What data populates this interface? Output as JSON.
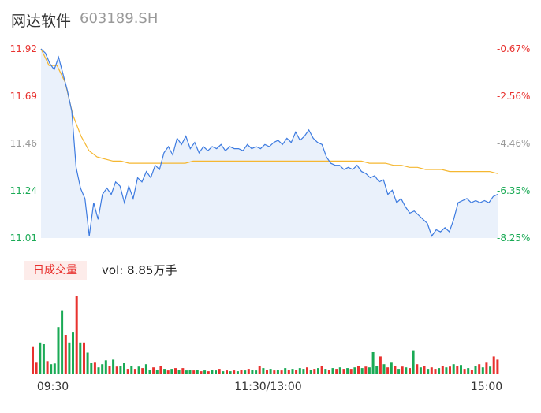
{
  "header": {
    "name": "网达软件",
    "code": "603189.SH"
  },
  "volume_panel": {
    "tag": "日成交量",
    "vol_text": "vol: 8.85万手"
  },
  "colors": {
    "up": "#e8322f",
    "down": "#1aaa55",
    "price_line": "#3d7be0",
    "avg_line": "#f5b731",
    "area_fill": "#eaf1fb"
  },
  "chart_data": [
    {
      "type": "line",
      "title": "",
      "y_ticks_left": [
        "11.92",
        "11.69",
        "11.46",
        "11.24",
        "11.01"
      ],
      "y_ticks_right": [
        "-0.67%",
        "-2.56%",
        "-4.46%",
        "-6.35%",
        "-8.25%"
      ],
      "ylim": [
        11.01,
        11.92
      ],
      "x_ticks": [
        "09:30",
        "11:30/13:00",
        "15:00"
      ],
      "grid": false,
      "series": [
        {
          "role": "price",
          "values": [
            11.92,
            11.9,
            11.85,
            11.82,
            11.88,
            11.8,
            11.72,
            11.62,
            11.35,
            11.25,
            11.2,
            11.02,
            11.18,
            11.1,
            11.22,
            11.25,
            11.22,
            11.28,
            11.26,
            11.18,
            11.26,
            11.2,
            11.3,
            11.28,
            11.33,
            11.3,
            11.36,
            11.34,
            11.42,
            11.45,
            11.41,
            11.49,
            11.46,
            11.5,
            11.44,
            11.47,
            11.42,
            11.45,
            11.43,
            11.45,
            11.44,
            11.46,
            11.43,
            11.45,
            11.44,
            11.44,
            11.43,
            11.46,
            11.44,
            11.45,
            11.44,
            11.46,
            11.45,
            11.47,
            11.48,
            11.46,
            11.49,
            11.47,
            11.52,
            11.48,
            11.5,
            11.53,
            11.49,
            11.47,
            11.46,
            11.4,
            11.37,
            11.36,
            11.36,
            11.34,
            11.35,
            11.34,
            11.36,
            11.33,
            11.32,
            11.3,
            11.31,
            11.28,
            11.29,
            11.22,
            11.24,
            11.18,
            11.2,
            11.16,
            11.13,
            11.14,
            11.12,
            11.1,
            11.08,
            11.02,
            11.05,
            11.04,
            11.06,
            11.04,
            11.1,
            11.18,
            11.19,
            11.2,
            11.18,
            11.19,
            11.18,
            11.19,
            11.18,
            11.21,
            11.22
          ]
        },
        {
          "role": "average",
          "values": [
            11.92,
            11.84,
            11.84,
            11.76,
            11.6,
            11.5,
            11.43,
            11.4,
            11.39,
            11.38,
            11.38,
            11.37,
            11.37,
            11.37,
            11.37,
            11.37,
            11.37,
            11.37,
            11.37,
            11.38,
            11.38,
            11.38,
            11.38,
            11.38,
            11.38,
            11.38,
            11.38,
            11.38,
            11.38,
            11.38,
            11.38,
            11.38,
            11.38,
            11.38,
            11.38,
            11.38,
            11.38,
            11.38,
            11.38,
            11.38,
            11.38,
            11.37,
            11.37,
            11.37,
            11.36,
            11.36,
            11.35,
            11.35,
            11.34,
            11.34,
            11.34,
            11.33,
            11.33,
            11.33,
            11.33,
            11.33,
            11.33,
            11.32
          ]
        }
      ]
    },
    {
      "type": "bar",
      "title": "",
      "ylim": [
        0,
        1
      ],
      "values": [
        0.35,
        0.15,
        0.4,
        0.38,
        0.16,
        0.12,
        0.13,
        0.6,
        0.82,
        0.5,
        0.4,
        0.54,
        1.0,
        0.4,
        0.4,
        0.27,
        0.14,
        0.15,
        0.08,
        0.12,
        0.17,
        0.1,
        0.18,
        0.09,
        0.1,
        0.14,
        0.06,
        0.1,
        0.06,
        0.09,
        0.07,
        0.12,
        0.05,
        0.08,
        0.05,
        0.1,
        0.06,
        0.04,
        0.06,
        0.07,
        0.05,
        0.07,
        0.04,
        0.05,
        0.04,
        0.05,
        0.03,
        0.04,
        0.03,
        0.05,
        0.04,
        0.06,
        0.03,
        0.04,
        0.03,
        0.04,
        0.03,
        0.05,
        0.04,
        0.06,
        0.05,
        0.04,
        0.1,
        0.07,
        0.05,
        0.06,
        0.04,
        0.05,
        0.04,
        0.07,
        0.05,
        0.06,
        0.05,
        0.07,
        0.06,
        0.08,
        0.05,
        0.06,
        0.07,
        0.1,
        0.06,
        0.05,
        0.07,
        0.06,
        0.08,
        0.06,
        0.07,
        0.06,
        0.08,
        0.1,
        0.07,
        0.09,
        0.08,
        0.28,
        0.1,
        0.22,
        0.12,
        0.08,
        0.15,
        0.1,
        0.06,
        0.09,
        0.08,
        0.07,
        0.3,
        0.12,
        0.08,
        0.1,
        0.06,
        0.08,
        0.06,
        0.07,
        0.1,
        0.08,
        0.09,
        0.12,
        0.1,
        0.11,
        0.06,
        0.07,
        0.05,
        0.1,
        0.12,
        0.08,
        0.15,
        0.09,
        0.22,
        0.18
      ],
      "up": [
        true,
        true,
        false,
        false,
        true,
        false,
        false,
        false,
        false,
        true,
        false,
        false,
        true,
        false,
        true,
        false,
        false,
        true,
        false,
        false,
        false,
        true,
        false,
        true,
        false,
        false,
        true,
        false,
        true,
        false,
        true,
        false,
        false,
        true,
        false,
        true,
        false,
        true,
        false,
        true,
        false,
        true,
        false,
        false,
        true,
        false,
        true,
        false,
        true,
        false,
        false,
        true,
        false,
        true,
        false,
        true,
        false,
        true,
        false,
        true,
        false,
        false,
        true,
        false,
        true,
        false,
        true,
        false,
        true,
        false,
        true,
        false,
        true,
        false,
        false,
        true,
        false,
        true,
        false,
        true,
        false,
        true,
        false,
        true,
        false,
        true,
        false,
        true,
        false,
        true,
        false,
        true,
        false,
        false,
        false,
        true,
        false,
        true,
        false,
        true,
        false,
        true,
        false,
        true,
        false,
        true,
        false,
        true,
        false,
        true,
        true,
        false,
        true,
        false,
        true,
        false,
        true,
        false,
        true,
        false,
        true,
        false,
        true,
        false,
        true,
        false,
        true,
        true
      ]
    }
  ]
}
